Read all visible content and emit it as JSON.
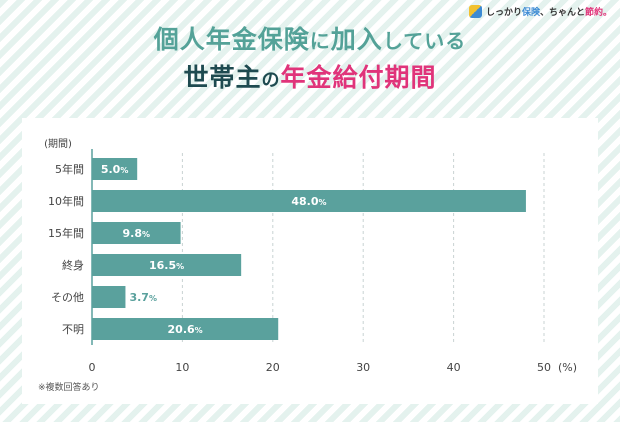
{
  "brand": {
    "part1": "しっかり",
    "part2": "保険",
    "part3": "、ちゃんと",
    "part4": "節約。"
  },
  "title": {
    "line1_a": "個人年金保険",
    "line1_b": "に",
    "line1_c": "加入",
    "line1_d": "している",
    "line2_a": "世帯主",
    "line2_b": "の",
    "line2_c": "年金給付期間"
  },
  "note": "※複数回答あり",
  "colors": {
    "bar": "#5aa19d",
    "accent": "#e0347a",
    "title_teal": "#54a298",
    "title_dark": "#1e4a50"
  },
  "chart_data": {
    "type": "bar",
    "orientation": "horizontal",
    "categories": [
      "5年間",
      "10年間",
      "15年間",
      "終身",
      "その他",
      "不明"
    ],
    "values": [
      5.0,
      48.0,
      9.8,
      16.5,
      3.7,
      20.6
    ],
    "value_labels": [
      "5.0",
      "48.0",
      "9.8",
      "16.5",
      "3.7",
      "20.6"
    ],
    "value_suffix": "%",
    "category_axis_label": "(期間)",
    "x_unit_label": "(%)",
    "xlim": [
      0,
      50
    ],
    "xticks": [
      0,
      10,
      20,
      30,
      40,
      50
    ],
    "grid": true
  }
}
